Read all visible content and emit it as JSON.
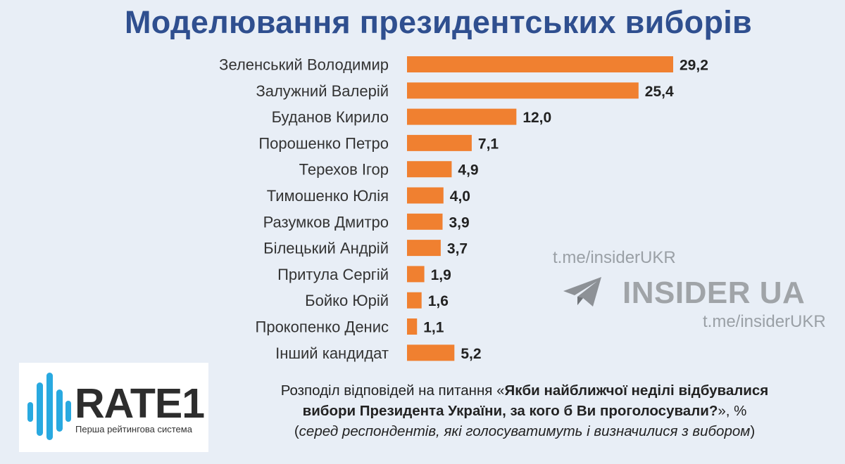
{
  "title": "Моделювання президентських виборів",
  "chart_data": {
    "type": "bar",
    "orientation": "horizontal",
    "categories": [
      "Зеленський Володимир",
      "Залужний Валерій",
      "Буданов Кирило",
      "Порошенко Петро",
      "Терехов Ігор",
      "Тимошенко Юлія",
      "Разумков Дмитро",
      "Білецький Андрій",
      "Притула Сергій",
      "Бойко Юрій",
      "Прокопенко Денис",
      "Інший кандидат"
    ],
    "values": [
      29.2,
      25.4,
      12.0,
      7.1,
      4.9,
      4.0,
      3.9,
      3.7,
      1.9,
      1.6,
      1.1,
      5.2
    ],
    "value_labels": [
      "29,2",
      "25,4",
      "12,0",
      "7,1",
      "4,9",
      "4,0",
      "3,9",
      "3,7",
      "1,9",
      "1,6",
      "1,1",
      "5,2"
    ],
    "xlim": [
      0,
      29.2
    ],
    "bar_color": "#f08030",
    "grid": false
  },
  "watermark": {
    "handle_top": "t.me/insiderUKR",
    "brand": "INSIDER UA",
    "handle_bottom": "t.me/insiderUKR",
    "icon": "telegram-plane-icon"
  },
  "logo": {
    "name": "RATE1",
    "tagline": "Перша рейтингова система",
    "icon": "sound-wave-icon",
    "accent": "#29a9e0"
  },
  "caption": {
    "line1_prefix": "Розподіл відповідей на питання «",
    "line1_bold": "Якби найближчої неділі відбувалися",
    "line2_bold": "вибори Президента України, за кого б Ви проголосували?",
    "line2_suffix": "», %",
    "line3_open": "(",
    "line3_italic": "серед респондентів, які голосуватимуть і визначилися з вибором",
    "line3_close": ")"
  }
}
